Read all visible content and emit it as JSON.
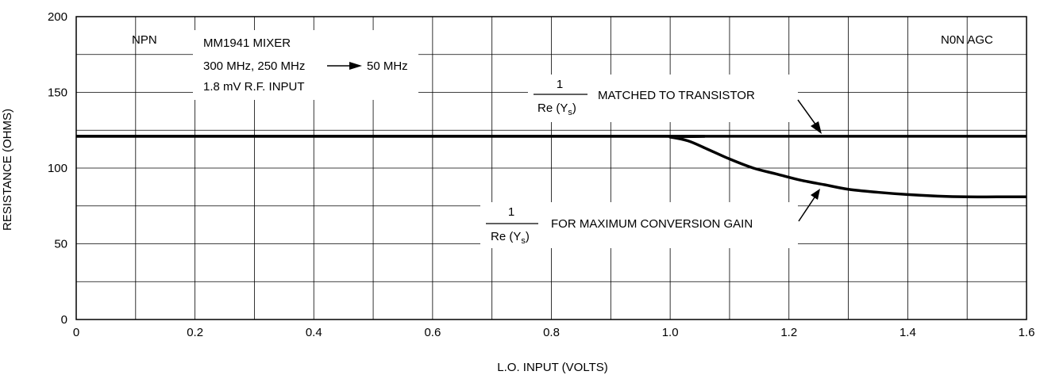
{
  "chart_data": {
    "type": "line",
    "xlabel": "L.O. INPUT (VOLTS)",
    "ylabel": "RESISTANCE (OHMS)",
    "xlim": [
      0,
      1.6
    ],
    "ylim": [
      0,
      200
    ],
    "x_ticks": [
      "0",
      "0.2",
      "0.4",
      "0.6",
      "0.8",
      "1.0",
      "1.2",
      "1.4",
      "1.6"
    ],
    "y_ticks": [
      "0",
      "50",
      "100",
      "150",
      "200"
    ],
    "grid": true,
    "series": [
      {
        "name": "1/Re(Ys) MATCHED TO TRANSISTOR",
        "x": [
          0,
          1.6
        ],
        "y": [
          121,
          121
        ]
      },
      {
        "name": "1/Re(Ys) FOR MAXIMUM CONVERSION GAIN",
        "x": [
          0,
          0.98,
          1.0,
          1.03,
          1.06,
          1.1,
          1.14,
          1.18,
          1.22,
          1.26,
          1.3,
          1.35,
          1.4,
          1.45,
          1.5,
          1.55,
          1.6
        ],
        "y": [
          121,
          121,
          120.5,
          118,
          113,
          106,
          100,
          96,
          92,
          89,
          86,
          84,
          82.5,
          81.5,
          81,
          81,
          81
        ]
      }
    ],
    "annotations": {
      "npn": "NPN",
      "mixer_title": "MM1941 MIXER",
      "freq_left": "300 MHz, 250 MHz",
      "freq_right": "50 MHz",
      "rf_input": "1.8 mV R.F. INPUT",
      "non_agc": "N0N AGC",
      "upper_numerator": "1",
      "upper_denominator": "Re (Y",
      "upper_sub": "s",
      "upper_paren": ")",
      "upper_label": "MATCHED TO TRANSISTOR",
      "lower_numerator": "1",
      "lower_denominator": "Re (Y",
      "lower_sub": "s",
      "lower_paren": ")",
      "lower_label": "FOR MAXIMUM CONVERSION GAIN"
    }
  }
}
